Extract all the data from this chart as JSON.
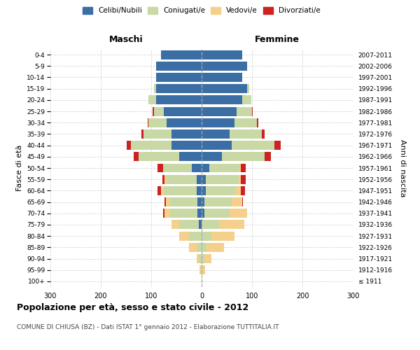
{
  "age_groups": [
    "100+",
    "95-99",
    "90-94",
    "85-89",
    "80-84",
    "75-79",
    "70-74",
    "65-69",
    "60-64",
    "55-59",
    "50-54",
    "45-49",
    "40-44",
    "35-39",
    "30-34",
    "25-29",
    "20-24",
    "15-19",
    "10-14",
    "5-9",
    "0-4"
  ],
  "birth_years": [
    "≤ 1911",
    "1912-1916",
    "1917-1921",
    "1922-1926",
    "1927-1931",
    "1932-1936",
    "1937-1941",
    "1942-1946",
    "1947-1951",
    "1952-1956",
    "1957-1961",
    "1962-1966",
    "1967-1971",
    "1972-1976",
    "1977-1981",
    "1982-1986",
    "1987-1991",
    "1992-1996",
    "1997-2001",
    "2002-2006",
    "2007-2011"
  ],
  "male_celibi": [
    0,
    0,
    0,
    0,
    0,
    5,
    8,
    8,
    10,
    10,
    20,
    45,
    60,
    60,
    70,
    75,
    90,
    90,
    90,
    90,
    80
  ],
  "male_coniugati": [
    0,
    2,
    5,
    10,
    25,
    40,
    55,
    55,
    65,
    60,
    55,
    80,
    80,
    55,
    35,
    20,
    15,
    5,
    0,
    0,
    0
  ],
  "male_vedovi": [
    0,
    2,
    5,
    15,
    20,
    15,
    10,
    8,
    5,
    3,
    2,
    0,
    0,
    0,
    0,
    0,
    0,
    0,
    0,
    0,
    0
  ],
  "male_divorziati": [
    0,
    0,
    0,
    0,
    0,
    0,
    3,
    3,
    8,
    5,
    10,
    10,
    8,
    5,
    2,
    2,
    0,
    0,
    0,
    0,
    0
  ],
  "female_celibi": [
    0,
    0,
    0,
    0,
    0,
    0,
    5,
    5,
    8,
    8,
    15,
    40,
    60,
    55,
    65,
    70,
    80,
    90,
    80,
    90,
    80
  ],
  "female_coniugati": [
    0,
    2,
    5,
    10,
    20,
    35,
    50,
    55,
    60,
    65,
    60,
    85,
    85,
    65,
    45,
    30,
    18,
    5,
    0,
    0,
    0
  ],
  "female_vedovi": [
    2,
    5,
    15,
    35,
    45,
    50,
    35,
    20,
    10,
    5,
    3,
    0,
    0,
    0,
    0,
    0,
    0,
    0,
    0,
    0,
    0
  ],
  "female_divorziati": [
    0,
    0,
    0,
    0,
    0,
    0,
    0,
    2,
    8,
    10,
    10,
    12,
    12,
    5,
    2,
    2,
    0,
    0,
    0,
    0,
    0
  ],
  "colors": {
    "celibi": "#3a6ea5",
    "coniugati": "#c8d9a5",
    "vedovi": "#f5d08c",
    "divorziati": "#cc2222"
  },
  "title": "Popolazione per età, sesso e stato civile - 2012",
  "subtitle": "COMUNE DI CHIUSA (BZ) - Dati ISTAT 1° gennaio 2012 - Elaborazione TUTTITALIA.IT",
  "xlabel_left": "Maschi",
  "xlabel_right": "Femmine",
  "ylabel": "Fasce di età",
  "ylabel_right": "Anni di nascita",
  "xlim": 300,
  "background_color": "#ffffff",
  "grid_color": "#cccccc"
}
